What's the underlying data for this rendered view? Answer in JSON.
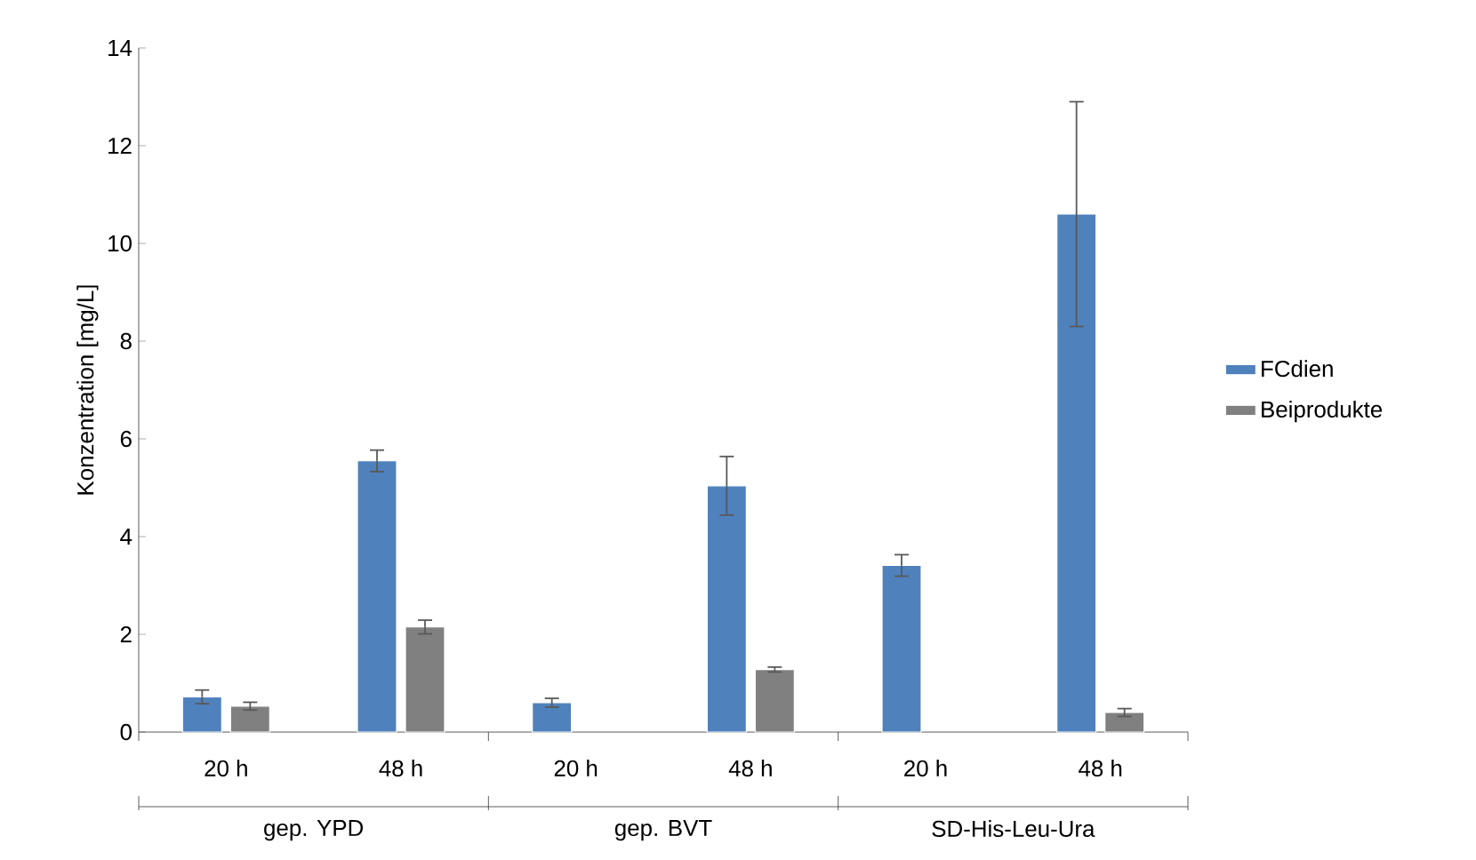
{
  "chart_data": {
    "type": "bar",
    "ylabel": "Konzentration [mg/L]",
    "categories": [
      "20 h",
      "48 h",
      "20 h",
      "48 h",
      "20 h",
      "48 h"
    ],
    "series": [
      {
        "name": "FCdien",
        "color": "#4f81bd",
        "values": [
          0.72,
          5.55,
          0.6,
          5.04,
          3.41,
          10.6
        ],
        "errors": [
          0.14,
          0.22,
          0.09,
          0.6,
          0.22,
          2.3
        ]
      },
      {
        "name": "Beiprodukte",
        "color": "#808080",
        "values": [
          0.53,
          2.15,
          null,
          1.28,
          null,
          0.4
        ],
        "errors": [
          0.08,
          0.14,
          null,
          0.05,
          null,
          0.08
        ]
      }
    ],
    "annotations": [
      "gep. YPD",
      "gep. BVT",
      "SD-His-Leu-Ura"
    ],
    "ylim": [
      0,
      14
    ],
    "yticks": [
      0,
      2,
      4,
      6,
      8,
      10,
      12,
      14
    ],
    "grid": false,
    "legend": "right"
  }
}
